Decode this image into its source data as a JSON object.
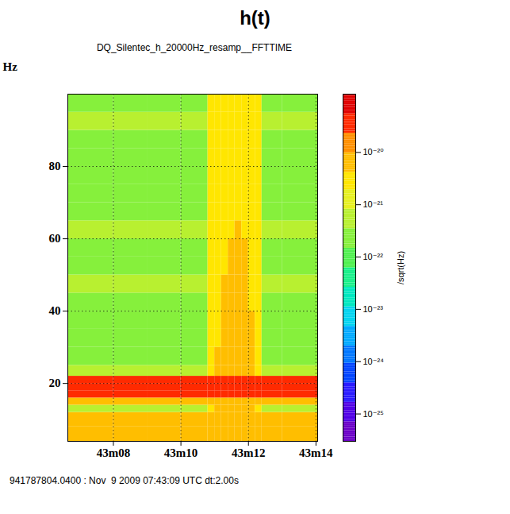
{
  "chart_data": {
    "type": "heatmap",
    "panel_title": "h(t)",
    "title": "DQ_Silentec_h_20000Hz_resamp__FFTTIME",
    "caption": "941787804.0400 : Nov  9 2009 07:43:09 UTC dt:2.00s",
    "y_label": "Hz",
    "xlim": [
      6.65,
      14.05
    ],
    "xticks": [
      {
        "value": 8,
        "label": "43m08"
      },
      {
        "value": 10,
        "label": "43m10"
      },
      {
        "value": 12,
        "label": "43m12"
      },
      {
        "value": 14,
        "label": "43m14"
      }
    ],
    "ylim": [
      4,
      100
    ],
    "yticks": [
      20,
      40,
      60,
      80
    ],
    "grid": true,
    "x_edges": [
      6.65,
      8,
      9,
      10,
      10.8,
      11.0,
      11.2,
      11.4,
      11.6,
      11.8,
      12.0,
      12.2,
      12.4,
      13,
      14.05
    ],
    "y_edges": [
      4,
      8,
      12,
      14,
      16,
      18,
      20,
      22,
      25,
      30,
      35,
      40,
      45,
      50,
      55,
      60,
      65,
      70,
      75,
      80,
      85,
      90,
      95,
      100
    ],
    "cells": [
      [
        7e-21,
        7e-21,
        7e-21,
        7e-21,
        7e-21,
        7e-21,
        7e-21,
        7e-21,
        7e-21,
        7e-21,
        7e-21,
        7e-21,
        7e-21,
        7e-21
      ],
      [
        5e-21,
        5e-21,
        5e-21,
        5e-21,
        5e-21,
        5e-21,
        5e-21,
        5e-21,
        5e-21,
        5e-21,
        5e-21,
        5e-21,
        5e-21,
        5e-21
      ],
      [
        4e-22,
        4e-22,
        4e-22,
        4e-22,
        2e-21,
        5e-21,
        5e-21,
        5e-21,
        5e-21,
        5e-21,
        5e-21,
        2e-21,
        4e-22,
        4e-22
      ],
      [
        1e-20,
        1e-20,
        1e-20,
        1e-20,
        1e-20,
        1e-20,
        1e-20,
        1e-20,
        1e-20,
        1e-20,
        1e-20,
        1e-20,
        1e-20,
        1e-20
      ],
      [
        3e-20,
        3e-20,
        3e-20,
        3e-20,
        3e-20,
        3e-20,
        3e-20,
        3e-20,
        3e-20,
        3e-20,
        3e-20,
        3e-20,
        3e-20,
        3e-20
      ],
      [
        4e-20,
        4e-20,
        4e-20,
        4e-20,
        4e-20,
        4e-20,
        4e-20,
        4e-20,
        4e-20,
        4e-20,
        4e-20,
        4e-20,
        4e-20,
        4e-20
      ],
      [
        2.5e-20,
        2.5e-20,
        2.5e-20,
        2.5e-20,
        2.5e-20,
        2.5e-20,
        2.5e-20,
        2.5e-20,
        2.5e-20,
        2.5e-20,
        2.5e-20,
        2.5e-20,
        2.5e-20,
        2.5e-20
      ],
      [
        6e-22,
        6e-22,
        6e-22,
        6e-22,
        2e-21,
        5e-21,
        1e-20,
        1e-20,
        1e-20,
        1e-20,
        5e-21,
        2e-21,
        6e-22,
        6e-22
      ],
      [
        3e-22,
        3e-22,
        3e-22,
        3e-22,
        2e-21,
        5e-21,
        1e-20,
        1e-20,
        1e-20,
        1e-20,
        5e-21,
        2e-21,
        3e-22,
        3e-22
      ],
      [
        2.5e-22,
        2.5e-22,
        2.5e-22,
        2.5e-22,
        2e-21,
        2e-21,
        5e-21,
        1e-20,
        1e-20,
        5e-21,
        5e-21,
        2e-21,
        2.5e-22,
        2.5e-22
      ],
      [
        3e-22,
        3e-22,
        3e-22,
        3e-22,
        2e-21,
        2e-21,
        5e-21,
        5e-21,
        5e-21,
        5e-21,
        5e-21,
        2e-21,
        3e-22,
        3e-22
      ],
      [
        2.5e-22,
        2.5e-22,
        2.5e-22,
        2.5e-22,
        2e-21,
        2e-21,
        5e-21,
        5e-21,
        5e-21,
        5e-21,
        2e-21,
        2e-21,
        2.5e-22,
        2.5e-22
      ],
      [
        4e-22,
        4e-22,
        4e-22,
        4e-22,
        2e-21,
        2e-21,
        5e-21,
        5e-21,
        5e-21,
        5e-21,
        2e-21,
        2e-21,
        4e-22,
        4e-22
      ],
      [
        3e-22,
        3e-22,
        3e-22,
        3e-22,
        2e-21,
        2e-21,
        2e-21,
        5e-21,
        5e-21,
        5e-21,
        2e-21,
        2e-21,
        3e-22,
        3e-22
      ],
      [
        2.5e-22,
        2.5e-22,
        2.5e-22,
        2.5e-22,
        2e-21,
        2e-21,
        2e-21,
        5e-21,
        5e-21,
        5e-21,
        2e-21,
        2e-21,
        2.5e-22,
        2.5e-22
      ],
      [
        6e-22,
        6e-22,
        6e-22,
        6e-22,
        2e-21,
        2e-21,
        2e-21,
        2e-21,
        5e-21,
        2e-21,
        2e-21,
        2e-21,
        6e-22,
        6e-22
      ],
      [
        2.5e-22,
        2.5e-22,
        2.5e-22,
        2.5e-22,
        2e-21,
        2e-21,
        2e-21,
        2e-21,
        2e-21,
        2e-21,
        2e-21,
        2e-21,
        2.5e-22,
        2.5e-22
      ],
      [
        3e-22,
        3e-22,
        3e-22,
        3e-22,
        2e-21,
        2e-21,
        2e-21,
        2e-21,
        2e-21,
        2e-21,
        2e-21,
        2e-21,
        3e-22,
        3e-22
      ],
      [
        2.5e-22,
        2.5e-22,
        2.5e-22,
        2.5e-22,
        2e-21,
        2e-21,
        2e-21,
        2e-21,
        2e-21,
        2e-21,
        2e-21,
        2e-21,
        2.5e-22,
        2.5e-22
      ],
      [
        3e-22,
        3e-22,
        3e-22,
        3e-22,
        2e-21,
        2e-21,
        2e-21,
        2e-21,
        2e-21,
        2e-21,
        2e-21,
        2e-21,
        3e-22,
        3e-22
      ],
      [
        2.5e-22,
        2.5e-22,
        2.5e-22,
        2.5e-22,
        2e-21,
        2e-21,
        2e-21,
        2e-21,
        2e-21,
        2e-21,
        2e-21,
        2e-21,
        2.5e-22,
        2.5e-22
      ],
      [
        5e-22,
        5e-22,
        5e-22,
        5e-22,
        2e-21,
        2e-21,
        2e-21,
        2e-21,
        2e-21,
        2e-21,
        2e-21,
        2e-21,
        5e-22,
        5e-22
      ],
      [
        3e-22,
        3e-22,
        3e-22,
        3e-22,
        2e-21,
        2e-21,
        2e-21,
        2e-21,
        2e-21,
        2e-21,
        2e-21,
        2e-21,
        3e-22,
        3e-22
      ]
    ],
    "colorbar": {
      "label": "/sqrt(Hz)",
      "log": true,
      "range": [
        3e-26,
        1.3e-19
      ],
      "ticks": [
        {
          "value": 1e-25,
          "label": "10⁻²⁵"
        },
        {
          "value": 1e-24,
          "label": "10⁻²⁴"
        },
        {
          "value": 1e-23,
          "label": "10⁻²³"
        },
        {
          "value": 1e-22,
          "label": "10⁻²²"
        },
        {
          "value": 1e-21,
          "label": "10⁻²¹"
        },
        {
          "value": 1e-20,
          "label": "10⁻²⁰"
        }
      ]
    }
  }
}
